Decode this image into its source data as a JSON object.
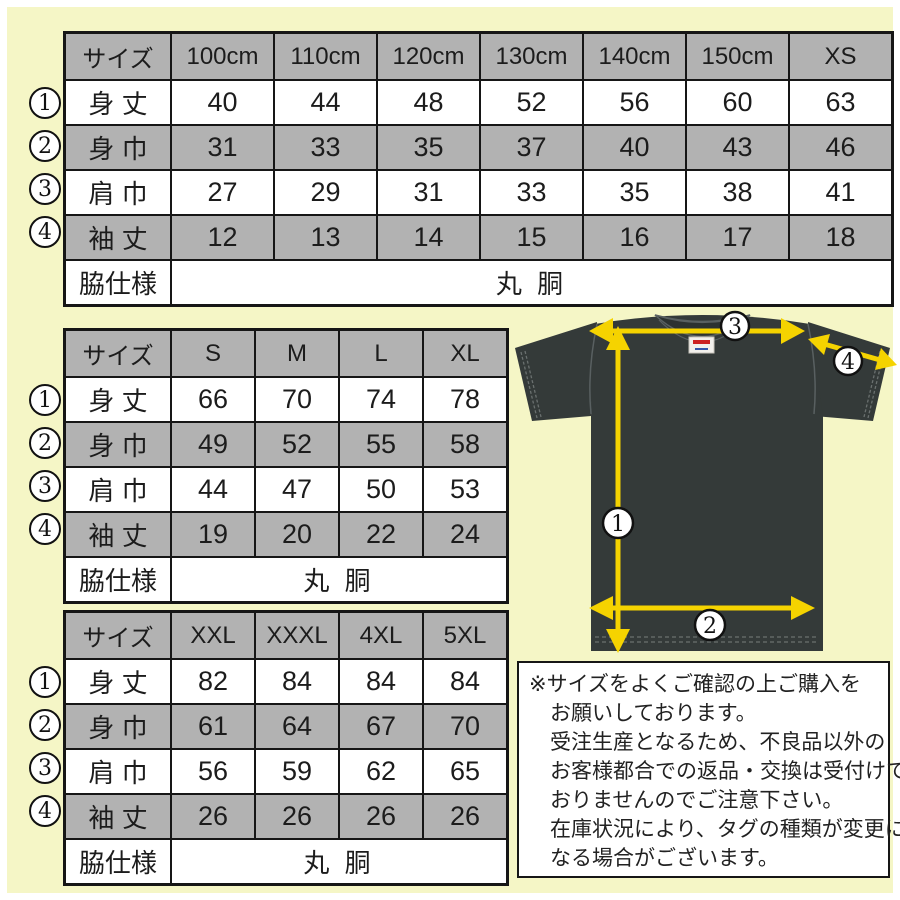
{
  "page": {
    "background": "#f5f6c6",
    "cell_gray": "#b2b2b2",
    "arrow_yellow": "#f5d300",
    "shirt_color": "#343a39"
  },
  "size_tables": [
    {
      "name": "kids-to-xs",
      "columns": [
        "サイズ",
        "100cm",
        "110cm",
        "120cm",
        "130cm",
        "140cm",
        "150cm",
        "XS"
      ],
      "rows": [
        {
          "num": "1",
          "label": "身 丈",
          "values": [
            "40",
            "44",
            "48",
            "52",
            "56",
            "60",
            "63"
          ]
        },
        {
          "num": "2",
          "label": "身 巾",
          "values": [
            "31",
            "33",
            "35",
            "37",
            "40",
            "43",
            "46"
          ]
        },
        {
          "num": "3",
          "label": "肩 巾",
          "values": [
            "27",
            "29",
            "31",
            "33",
            "35",
            "38",
            "41"
          ]
        },
        {
          "num": "4",
          "label": "袖 丈",
          "values": [
            "12",
            "13",
            "14",
            "15",
            "16",
            "17",
            "18"
          ]
        }
      ],
      "footer": {
        "label": "脇仕様",
        "value": "丸 胴"
      }
    },
    {
      "name": "s-to-xl",
      "columns": [
        "サイズ",
        "S",
        "M",
        "L",
        "XL"
      ],
      "rows": [
        {
          "num": "1",
          "label": "身 丈",
          "values": [
            "66",
            "70",
            "74",
            "78"
          ]
        },
        {
          "num": "2",
          "label": "身 巾",
          "values": [
            "49",
            "52",
            "55",
            "58"
          ]
        },
        {
          "num": "3",
          "label": "肩 巾",
          "values": [
            "44",
            "47",
            "50",
            "53"
          ]
        },
        {
          "num": "4",
          "label": "袖 丈",
          "values": [
            "19",
            "20",
            "22",
            "24"
          ]
        }
      ],
      "footer": {
        "label": "脇仕様",
        "value": "丸 胴"
      }
    },
    {
      "name": "xxl-to-5xl",
      "columns": [
        "サイズ",
        "XXL",
        "XXXL",
        "4XL",
        "5XL"
      ],
      "rows": [
        {
          "num": "1",
          "label": "身 丈",
          "values": [
            "82",
            "84",
            "84",
            "84"
          ]
        },
        {
          "num": "2",
          "label": "身 巾",
          "values": [
            "61",
            "64",
            "67",
            "70"
          ]
        },
        {
          "num": "3",
          "label": "肩 巾",
          "values": [
            "56",
            "59",
            "62",
            "65"
          ]
        },
        {
          "num": "4",
          "label": "袖 丈",
          "values": [
            "26",
            "26",
            "26",
            "26"
          ]
        }
      ],
      "footer": {
        "label": "脇仕様",
        "value": "丸 胴"
      }
    }
  ],
  "diagram": {
    "markers": [
      "1",
      "2",
      "3",
      "4"
    ]
  },
  "note": {
    "lines": [
      "※サイズをよくご確認の上ご購入を",
      "お願いしております。",
      "受注生産となるため、不良品以外の",
      "お客様都合での返品・交換は受付けて",
      "おりませんのでご注意下さい。",
      "在庫状況により、タグの種類が変更に",
      "なる場合がございます。"
    ]
  }
}
